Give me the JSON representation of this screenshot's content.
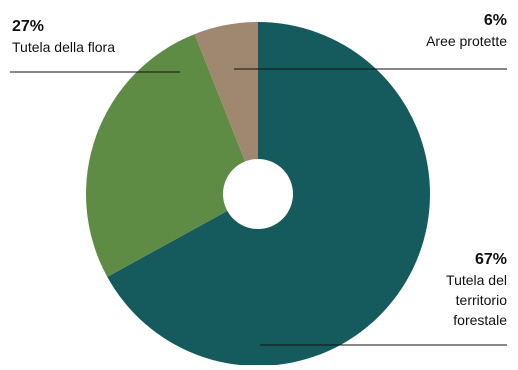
{
  "chart_data": {
    "type": "pie",
    "title": "",
    "categories": [
      "Tutela del territorio forestale",
      "Tutela della flora",
      "Aree protette"
    ],
    "values": [
      67,
      27,
      6
    ],
    "value_labels": [
      "67%",
      "27%",
      "6%"
    ],
    "label_lines": [
      [
        "Tutela del",
        "territorio",
        "forestale"
      ],
      [
        "Tutela della flora"
      ],
      [
        "Aree protette"
      ]
    ],
    "colors": [
      "#155b5d",
      "#5f8c45",
      "#a08770"
    ],
    "donut_hole": true,
    "legend": "none",
    "start": "12 o'clock",
    "direction": "clockwise"
  }
}
